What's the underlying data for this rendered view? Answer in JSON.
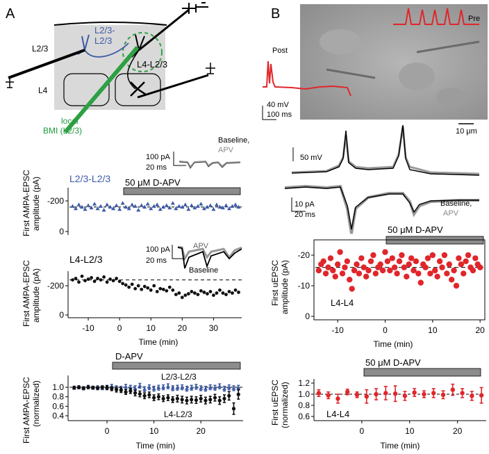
{
  "panelA": {
    "letter": "A",
    "schematic": {
      "layer_l23": "L2/3",
      "layer_l4": "L4",
      "label_l23_l23_line1": "L2/3-",
      "label_l23_l23_line2": "L2/3",
      "label_l4_l23": "L4-L2/3",
      "bmi_line1": "local",
      "bmi_line2": "BMI (L2/3)"
    },
    "chart1": {
      "title": "L2/3-L2/3",
      "bar_label": "50 μM D-APV",
      "ylabel_line1": "First AMPA-EPSC",
      "ylabel_line2": "amplitude (pA)",
      "yticks": [
        "-200",
        "0"
      ],
      "scale_current": "100 pA",
      "scale_time": "20 ms",
      "legend_line1": "Baseline,",
      "legend_line2": "APV"
    },
    "chart2": {
      "title": "L4-L2/3",
      "ylabel_line1": "First AMPA-EPSC",
      "ylabel_line2": "amplitude (pA)",
      "yticks": [
        "-200",
        "0"
      ],
      "xticks": [
        "-10",
        "0",
        "10",
        "20",
        "30"
      ],
      "xlabel": "Time (min)",
      "scale_current": "100 pA",
      "scale_time": "20 ms",
      "trace_apv": "APV",
      "trace_baseline": "Baseline"
    },
    "chart3": {
      "bar_label": "D-APV",
      "ylabel_line1": "First AMPA-EPSC",
      "ylabel_line2": "(normalized)",
      "yticks": [
        "1.0",
        "0.8",
        "0.6",
        "0.4"
      ],
      "xticks": [
        "0",
        "10",
        "20"
      ],
      "xlabel": "Time (min)",
      "series1_label": "L2/3-L2/3",
      "series2_label": "L4-L2/3"
    }
  },
  "panelB": {
    "letter": "B",
    "image": {
      "label_pre": "Pre",
      "label_post": "Post",
      "scale_voltage": "40 mV",
      "scale_time": "100 ms",
      "scale_length": "10 μm"
    },
    "traces": {
      "scale_voltage": "50 mV",
      "scale_current": "10 pA",
      "scale_time": "20 ms",
      "legend_line1": "Baseline,",
      "legend_line2": "APV"
    },
    "chart1": {
      "bar_label": "50 μM D-APV",
      "ylabel_line1": "First uEPSC",
      "ylabel_line2": "amplitude (pA)",
      "yticks": [
        "-20",
        "-10",
        "0"
      ],
      "xticks": [
        "-10",
        "0",
        "10",
        "20"
      ],
      "xlabel": "Time (min)",
      "series_label": "L4-L4"
    },
    "chart2": {
      "bar_label": "50 μM D-APV",
      "ylabel_line1": "First uEPSC",
      "ylabel_line2": "(normalized)",
      "yticks": [
        "1.2",
        "1.0",
        "0.8",
        "0.6"
      ],
      "xticks": [
        "0",
        "10",
        "20"
      ],
      "xlabel": "Time (min)",
      "series_label": "L4-L4"
    }
  },
  "colors": {
    "blue": "#3c5aa6",
    "black": "#111111",
    "red": "#e0262b",
    "green": "#1e9a3c",
    "gray_bar": "#8c8c8c"
  },
  "chart_data": [
    {
      "id": "A-L23-L23",
      "type": "scatter",
      "title": "L2/3-L2/3",
      "xlabel": "Time (min)",
      "ylabel": "First AMPA-EPSC amplitude (pA)",
      "xlim": [
        -16,
        39
      ],
      "ylim": [
        0,
        -270
      ],
      "apv_start": 0,
      "series": [
        {
          "marker": "triangle",
          "x": [
            -15,
            -14,
            -13,
            -12,
            -11,
            -10,
            -9,
            -8,
            -7,
            -6,
            -5,
            -4,
            -3,
            -2,
            -1,
            0,
            1,
            2,
            3,
            4,
            5,
            6,
            7,
            8,
            9,
            10,
            11,
            12,
            13,
            14,
            15,
            16,
            17,
            18,
            19,
            20,
            21,
            22,
            23,
            24,
            25,
            26,
            27,
            28,
            29,
            30,
            31,
            32,
            33,
            34,
            35,
            36,
            37,
            38
          ],
          "y": [
            -165,
            -150,
            -175,
            -160,
            -145,
            -170,
            -155,
            -180,
            -150,
            -165,
            -140,
            -175,
            -160,
            -150,
            -170,
            -145,
            -185,
            -160,
            -150,
            -175,
            -165,
            -140,
            -170,
            -160,
            -180,
            -150,
            -165,
            -175,
            -145,
            -160,
            -170,
            -155,
            -185,
            -150,
            -165,
            -160,
            -175,
            -145,
            -170,
            -155,
            -165,
            -180,
            -150,
            -160,
            -170,
            -145,
            -175,
            -160,
            -155,
            -170,
            -150,
            -165,
            -175,
            -160
          ]
        }
      ]
    },
    {
      "id": "A-L4-L23",
      "type": "scatter",
      "title": "L4-L2/3",
      "xlabel": "Time (min)",
      "ylabel": "First AMPA-EPSC amplitude (pA)",
      "xlim": [
        -16,
        39
      ],
      "ylim": [
        0,
        -270
      ],
      "baseline": -240,
      "series": [
        {
          "marker": "circle",
          "x": [
            -15,
            -14,
            -13,
            -12,
            -11,
            -10,
            -9,
            -8,
            -7,
            -6,
            -5,
            -4,
            -3,
            -2,
            -1,
            0,
            1,
            2,
            3,
            4,
            5,
            6,
            7,
            8,
            9,
            10,
            11,
            12,
            13,
            14,
            15,
            16,
            17,
            18,
            19,
            20,
            21,
            22,
            23,
            24,
            25,
            26,
            27,
            28,
            29,
            30,
            31,
            32,
            33,
            34,
            35,
            36,
            37,
            38
          ],
          "y": [
            -240,
            -250,
            -225,
            -265,
            -235,
            -245,
            -255,
            -230,
            -250,
            -240,
            -260,
            -225,
            -245,
            -235,
            -250,
            -230,
            -215,
            -205,
            -190,
            -210,
            -180,
            -200,
            -175,
            -195,
            -185,
            -170,
            -200,
            -160,
            -180,
            -175,
            -165,
            -190,
            -170,
            -140,
            -150,
            -120,
            -135,
            -145,
            -160,
            -150,
            -140,
            -165,
            -155,
            -145,
            -160,
            -135,
            -150,
            -170,
            -150,
            -140,
            -160,
            -150,
            -170,
            -155
          ]
        }
      ]
    },
    {
      "id": "A-normalized",
      "type": "line",
      "xlabel": "Time (min)",
      "ylabel": "First AMPA-EPSC (normalized)",
      "xlim": [
        -8,
        29
      ],
      "ylim": [
        0.3,
        1.1
      ],
      "series": [
        {
          "name": "L2/3-L2/3",
          "x": [
            -7,
            -6,
            -5,
            -4,
            -3,
            -2,
            -1,
            0,
            1,
            2,
            3,
            4,
            5,
            6,
            7,
            8,
            9,
            10,
            11,
            12,
            13,
            14,
            15,
            16,
            17,
            18,
            19,
            20,
            21,
            22,
            23,
            24,
            25,
            26,
            27,
            28
          ],
          "y": [
            0.99,
            1.0,
            0.98,
            1.01,
            0.99,
            1.0,
            0.98,
            1.0,
            1.02,
            0.99,
            0.97,
            1.01,
            1.0,
            0.98,
            1.03,
            0.96,
            1.0,
            0.97,
            0.99,
            1.0,
            1.02,
            0.98,
            0.99,
            1.0,
            0.97,
            0.99,
            1.01,
            0.98,
            0.97,
            1.0,
            0.99,
            1.02,
            0.97,
            1.0,
            0.98,
            0.99
          ],
          "err": [
            0.03,
            0.03,
            0.03,
            0.03,
            0.03,
            0.03,
            0.03,
            0.04,
            0.04,
            0.04,
            0.05,
            0.05,
            0.04,
            0.05,
            0.05,
            0.05,
            0.05,
            0.05,
            0.05,
            0.05,
            0.05,
            0.05,
            0.05,
            0.05,
            0.05,
            0.05,
            0.05,
            0.05,
            0.05,
            0.05,
            0.05,
            0.05,
            0.05,
            0.05,
            0.05,
            0.05
          ]
        },
        {
          "name": "L4-L2/3",
          "x": [
            -7,
            -6,
            -5,
            -4,
            -3,
            -2,
            -1,
            0,
            1,
            2,
            3,
            4,
            5,
            6,
            7,
            8,
            9,
            10,
            11,
            12,
            13,
            14,
            15,
            16,
            17,
            18,
            19,
            20,
            21,
            22,
            23,
            24,
            25,
            26,
            27,
            28
          ],
          "y": [
            0.99,
            1.0,
            0.98,
            1.0,
            0.99,
            0.98,
            1.0,
            0.99,
            0.97,
            0.95,
            0.94,
            0.9,
            0.92,
            0.88,
            0.86,
            0.82,
            0.84,
            0.78,
            0.8,
            0.76,
            0.78,
            0.74,
            0.76,
            0.74,
            0.72,
            0.74,
            0.73,
            0.76,
            0.72,
            0.74,
            0.78,
            0.72,
            0.76,
            0.82,
            0.55,
            0.85
          ],
          "err": [
            0.03,
            0.03,
            0.03,
            0.03,
            0.03,
            0.03,
            0.03,
            0.04,
            0.04,
            0.05,
            0.05,
            0.05,
            0.05,
            0.06,
            0.06,
            0.06,
            0.06,
            0.06,
            0.06,
            0.06,
            0.06,
            0.06,
            0.07,
            0.07,
            0.07,
            0.07,
            0.07,
            0.07,
            0.07,
            0.07,
            0.07,
            0.08,
            0.08,
            0.09,
            0.12,
            0.1
          ]
        }
      ]
    },
    {
      "id": "B-L4-L4",
      "type": "scatter",
      "title": "L4-L4",
      "xlabel": "Time (min)",
      "ylabel": "First uEPSC amplitude (pA)",
      "xlim": [
        -15,
        21
      ],
      "ylim": [
        0,
        -23
      ],
      "baseline": -16,
      "series": [
        {
          "marker": "circle",
          "x": [
            -14,
            -13.5,
            -13,
            -12.5,
            -12,
            -11.5,
            -11,
            -10.5,
            -10,
            -9.5,
            -9,
            -8.5,
            -8,
            -7.5,
            -7,
            -6.5,
            -6,
            -5.5,
            -5,
            -4.5,
            -4,
            -3.5,
            -3,
            -2.5,
            -2,
            -1.5,
            -1,
            -0.5,
            0,
            0.5,
            1,
            1.5,
            2,
            2.5,
            3,
            3.5,
            4,
            4.5,
            5,
            5.5,
            6,
            6.5,
            7,
            7.5,
            8,
            8.5,
            9,
            9.5,
            10,
            10.5,
            11,
            11.5,
            12,
            12.5,
            13,
            13.5,
            14,
            14.5,
            15,
            15.5,
            16,
            16.5,
            17,
            17.5,
            18,
            18.5,
            19,
            19.5,
            20
          ],
          "y": [
            -15,
            -17,
            -18,
            -14,
            -16,
            -19,
            -15,
            -13,
            -17,
            -21,
            -14,
            -16,
            -18,
            -12,
            -9,
            -15,
            -17,
            -14,
            -19,
            -16,
            -13,
            -15,
            -18,
            -20,
            -14,
            -16,
            -17,
            -15,
            -21,
            -18,
            -15,
            -19,
            -16,
            -14,
            -18,
            -20,
            -16,
            -13,
            -17,
            -19,
            -15,
            -18,
            -14,
            -11,
            -17,
            -16,
            -19,
            -14,
            -20,
            -15,
            -13,
            -18,
            -16,
            -20,
            -14,
            -17,
            -12,
            -15,
            -10,
            -19,
            -17,
            -14,
            -18,
            -20,
            -16,
            -15,
            -19,
            -17,
            -16
          ]
        }
      ]
    },
    {
      "id": "B-normalized",
      "type": "line",
      "xlabel": "Time (min)",
      "ylabel": "First uEPSC (normalized)",
      "xlim": [
        -10,
        26
      ],
      "ylim": [
        0.5,
        1.3
      ],
      "series": [
        {
          "name": "L4-L4",
          "x": [
            -9,
            -7,
            -5,
            -3,
            -1,
            1,
            3,
            5,
            7,
            9,
            11,
            13,
            15,
            17,
            19,
            21,
            23,
            25
          ],
          "y": [
            1.02,
            0.98,
            0.92,
            1.04,
            0.99,
            0.96,
            1.0,
            1.02,
            1.01,
            0.97,
            1.03,
            1.0,
            1.02,
            0.99,
            1.08,
            1.02,
            0.97,
            0.98
          ],
          "err": [
            0.06,
            0.06,
            0.08,
            0.05,
            0.05,
            0.12,
            0.1,
            0.12,
            0.14,
            0.08,
            0.07,
            0.06,
            0.08,
            0.07,
            0.1,
            0.08,
            0.08,
            0.14
          ]
        }
      ]
    }
  ]
}
